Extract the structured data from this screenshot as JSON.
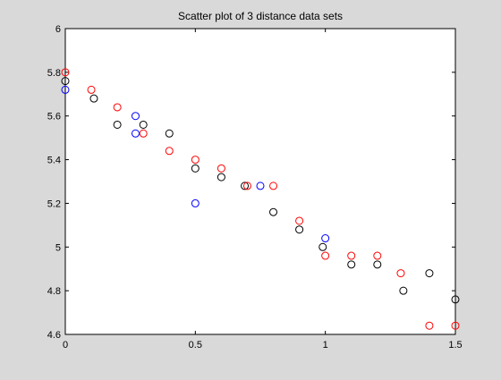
{
  "chart_data": {
    "type": "scatter",
    "title": "Scatter plot of 3 distance data sets",
    "xlabel": "",
    "ylabel": "",
    "xlim": [
      0,
      1.5
    ],
    "ylim": [
      4.6,
      6
    ],
    "grid": false,
    "x_ticks": [
      {
        "value": 0,
        "label": "0"
      },
      {
        "value": 0.5,
        "label": "0.5"
      },
      {
        "value": 1,
        "label": "1"
      },
      {
        "value": 1.5,
        "label": "1.5"
      }
    ],
    "y_ticks": [
      {
        "value": 4.6,
        "label": "4.6"
      },
      {
        "value": 4.8,
        "label": "4.8"
      },
      {
        "value": 5,
        "label": "5"
      },
      {
        "value": 5.2,
        "label": "5.2"
      },
      {
        "value": 5.4,
        "label": "5.4"
      },
      {
        "value": 5.6,
        "label": "5.6"
      },
      {
        "value": 5.8,
        "label": "5.8"
      },
      {
        "value": 6,
        "label": "6"
      }
    ],
    "series": [
      {
        "color": "#0000ff",
        "marker": "circle",
        "points": [
          [
            0,
            5.72
          ],
          [
            0.27,
            5.6
          ],
          [
            0.27,
            5.52
          ],
          [
            0.5,
            5.2
          ],
          [
            0.75,
            5.28
          ],
          [
            1.0,
            5.04
          ]
        ]
      },
      {
        "color": "#000000",
        "marker": "circle",
        "points": [
          [
            0,
            5.76
          ],
          [
            0.11,
            5.68
          ],
          [
            0.2,
            5.56
          ],
          [
            0.3,
            5.56
          ],
          [
            0.4,
            5.52
          ],
          [
            0.5,
            5.36
          ],
          [
            0.6,
            5.32
          ],
          [
            0.69,
            5.28
          ],
          [
            0.8,
            5.16
          ],
          [
            0.9,
            5.08
          ],
          [
            0.99,
            5.0
          ],
          [
            1.1,
            4.92
          ],
          [
            1.2,
            4.92
          ],
          [
            1.3,
            4.8
          ],
          [
            1.4,
            4.88
          ],
          [
            1.5,
            4.76
          ]
        ]
      },
      {
        "color": "#ff0000",
        "marker": "circle",
        "points": [
          [
            0,
            5.8
          ],
          [
            0.1,
            5.72
          ],
          [
            0.2,
            5.64
          ],
          [
            0.3,
            5.52
          ],
          [
            0.4,
            5.44
          ],
          [
            0.5,
            5.4
          ],
          [
            0.6,
            5.36
          ],
          [
            0.7,
            5.28
          ],
          [
            0.8,
            5.28
          ],
          [
            0.9,
            5.12
          ],
          [
            1.0,
            4.96
          ],
          [
            1.1,
            4.96
          ],
          [
            1.2,
            4.96
          ],
          [
            1.29,
            4.88
          ],
          [
            1.4,
            4.64
          ],
          [
            1.5,
            4.64
          ]
        ]
      }
    ]
  }
}
